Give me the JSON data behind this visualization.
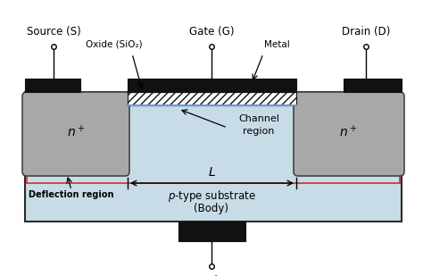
{
  "bg_color": "#ffffff",
  "substrate_color": "#c8dce8",
  "substrate_border_color": "#2a2a2a",
  "n_region_color": "#a8a8a8",
  "n_region_border": "#444444",
  "metal_color": "#111111",
  "red_line_color": "#cc2222",
  "blue_line_color": "#6699cc",
  "oxide_hatch": "////",
  "labels": {
    "source": "Source (S)",
    "gate": "Gate (G)",
    "drain": "Drain (D)",
    "oxide": "Oxide (SiO₂)",
    "metal": "Metal",
    "channel": "Channel\nregion",
    "L_label": "L",
    "deflection": "Deflection region",
    "substrate_line1": "p-type substrate",
    "substrate_line2": "(Body)",
    "body": "Body",
    "n_plus": "n⁺"
  }
}
